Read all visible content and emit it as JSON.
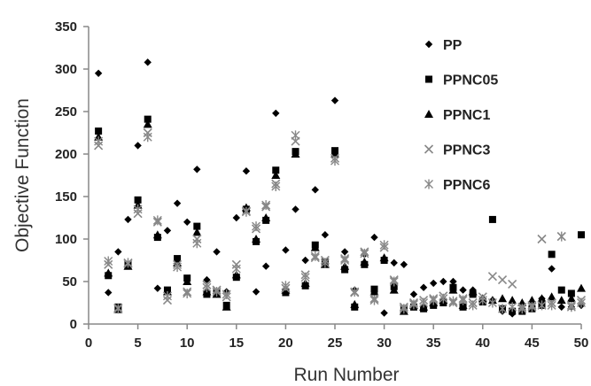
{
  "chart_data": {
    "type": "scatter",
    "title": "",
    "xlabel": "Run Number",
    "ylabel": "Objective Function",
    "xlim": [
      0,
      50
    ],
    "ylim": [
      0,
      350
    ],
    "xticks": [
      0,
      5,
      10,
      15,
      20,
      25,
      30,
      35,
      40,
      45,
      50
    ],
    "yticks": [
      0,
      50,
      100,
      150,
      200,
      250,
      300,
      350
    ],
    "grid": false,
    "legend_position": "top-right",
    "series": [
      {
        "name": "PP",
        "marker": "diamond",
        "color": "#000000",
        "x": [
          1,
          2,
          3,
          4,
          5,
          6,
          7,
          8,
          9,
          10,
          11,
          12,
          13,
          14,
          15,
          16,
          17,
          18,
          19,
          20,
          21,
          22,
          23,
          24,
          25,
          26,
          27,
          28,
          29,
          30,
          31,
          32,
          33,
          34,
          35,
          36,
          37,
          38,
          39,
          40,
          41,
          42,
          43,
          44,
          45,
          46,
          47,
          48,
          49,
          50
        ],
        "y": [
          295,
          37,
          85,
          123,
          210,
          308,
          42,
          110,
          142,
          120,
          182,
          52,
          85,
          38,
          125,
          180,
          38,
          68,
          248,
          87,
          135,
          75,
          158,
          105,
          263,
          85,
          40,
          82,
          102,
          13,
          72,
          70,
          35,
          43,
          48,
          50,
          50,
          40,
          40,
          30,
          28,
          15,
          12,
          22,
          25,
          30,
          65,
          20,
          20,
          22
        ]
      },
      {
        "name": "PPNC05",
        "marker": "square",
        "color": "#000000",
        "x": [
          1,
          2,
          3,
          4,
          5,
          6,
          7,
          8,
          9,
          10,
          11,
          12,
          13,
          14,
          15,
          16,
          17,
          18,
          19,
          20,
          21,
          22,
          23,
          24,
          25,
          26,
          27,
          28,
          29,
          30,
          31,
          32,
          33,
          34,
          35,
          36,
          37,
          38,
          39,
          40,
          41,
          42,
          43,
          44,
          45,
          46,
          47,
          48,
          49,
          50
        ],
        "y": [
          227,
          57,
          20,
          70,
          146,
          241,
          102,
          40,
          77,
          54,
          115,
          35,
          37,
          22,
          55,
          135,
          97,
          122,
          181,
          37,
          203,
          45,
          93,
          73,
          204,
          64,
          20,
          70,
          41,
          75,
          44,
          18,
          20,
          18,
          22,
          25,
          43,
          20,
          35,
          26,
          123,
          18,
          15,
          15,
          18,
          22,
          82,
          40,
          36,
          105
        ]
      },
      {
        "name": "PPNC1",
        "marker": "triangle",
        "color": "#000000",
        "x": [
          1,
          2,
          3,
          4,
          5,
          6,
          7,
          8,
          9,
          10,
          11,
          12,
          13,
          14,
          15,
          16,
          17,
          18,
          19,
          20,
          21,
          22,
          23,
          24,
          25,
          26,
          27,
          28,
          29,
          30,
          31,
          32,
          33,
          34,
          35,
          36,
          37,
          38,
          39,
          40,
          41,
          42,
          43,
          44,
          45,
          46,
          47,
          48,
          49,
          50
        ],
        "y": [
          220,
          60,
          17,
          68,
          140,
          235,
          105,
          38,
          72,
          50,
          108,
          38,
          35,
          20,
          58,
          137,
          100,
          125,
          175,
          40,
          200,
          48,
          90,
          70,
          200,
          68,
          23,
          73,
          38,
          78,
          40,
          15,
          22,
          20,
          25,
          28,
          40,
          22,
          38,
          30,
          28,
          30,
          28,
          25,
          28,
          30,
          32,
          28,
          30,
          42
        ]
      },
      {
        "name": "PPNC3",
        "marker": "x",
        "color": "#888888",
        "x": [
          1,
          2,
          3,
          4,
          5,
          6,
          7,
          8,
          9,
          10,
          11,
          12,
          13,
          14,
          15,
          16,
          17,
          18,
          19,
          20,
          21,
          22,
          23,
          24,
          25,
          26,
          27,
          28,
          29,
          30,
          31,
          32,
          33,
          34,
          35,
          36,
          37,
          38,
          39,
          40,
          41,
          42,
          43,
          44,
          45,
          46,
          47,
          48,
          49,
          50
        ],
        "y": [
          210,
          70,
          19,
          71,
          130,
          225,
          120,
          28,
          70,
          38,
          100,
          46,
          40,
          32,
          70,
          133,
          112,
          138,
          165,
          42,
          215,
          58,
          78,
          75,
          195,
          77,
          37,
          85,
          30,
          90,
          52,
          20,
          25,
          28,
          30,
          33,
          25,
          30,
          25,
          32,
          56,
          52,
          47,
          20,
          22,
          100,
          25,
          103,
          22,
          28
        ]
      },
      {
        "name": "PPNC6",
        "marker": "asterisk",
        "color": "#888888",
        "x": [
          1,
          2,
          3,
          4,
          5,
          6,
          7,
          8,
          9,
          10,
          11,
          12,
          13,
          14,
          15,
          16,
          17,
          18,
          19,
          20,
          21,
          22,
          23,
          24,
          25,
          26,
          27,
          28,
          29,
          30,
          31,
          32,
          33,
          34,
          35,
          36,
          37,
          38,
          39,
          40,
          41,
          42,
          43,
          44,
          45,
          46,
          47,
          48,
          49,
          50
        ],
        "y": [
          215,
          74,
          18,
          72,
          135,
          220,
          122,
          33,
          67,
          36,
          95,
          43,
          38,
          35,
          65,
          132,
          115,
          140,
          162,
          45,
          222,
          55,
          80,
          72,
          192,
          75,
          38,
          83,
          28,
          93,
          50,
          18,
          23,
          25,
          28,
          30,
          27,
          28,
          22,
          28,
          25,
          18,
          20,
          18,
          20,
          22,
          22,
          103,
          20,
          25
        ]
      }
    ]
  }
}
